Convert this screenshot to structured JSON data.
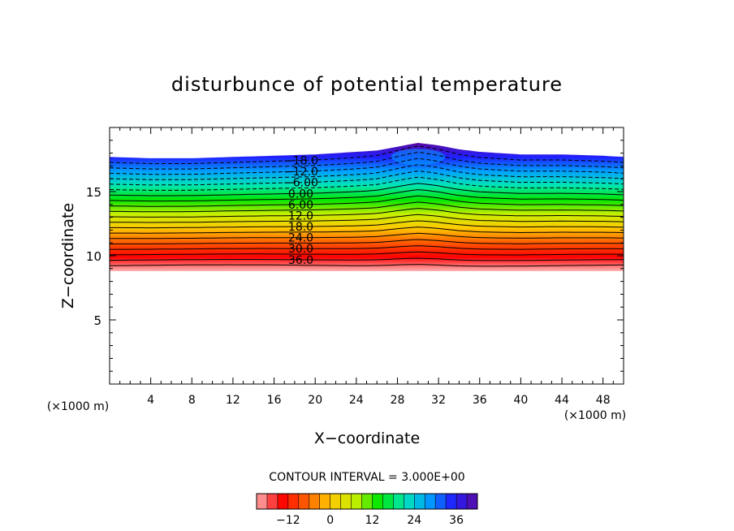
{
  "chart_data": {
    "type": "heatmap",
    "title": "disturbunce of potential temperature",
    "xlabel": "X−coordinate",
    "ylabel": "Z−coordinate",
    "x_unit_label": "(×1000 m)",
    "y_unit_label": "(×1000 m)",
    "xlim": [
      0,
      50
    ],
    "ylim": [
      0,
      20
    ],
    "x_ticks": [
      4,
      8,
      12,
      16,
      20,
      24,
      28,
      32,
      36,
      40,
      44,
      48
    ],
    "x_tick_labels": [
      "4",
      "8",
      "12",
      "16",
      "20",
      "24",
      "28",
      "32",
      "36",
      "40",
      "44",
      "48"
    ],
    "y_ticks": [
      5,
      10,
      15
    ],
    "y_tick_labels": [
      "5",
      "10",
      "15"
    ],
    "field": {
      "description": "potential temperature disturbance layer",
      "layer_bottom_z": 8.8,
      "layer_top_z_profile": [
        [
          0,
          17.7
        ],
        [
          4,
          17.6
        ],
        [
          8,
          17.6
        ],
        [
          12,
          17.7
        ],
        [
          16,
          17.8
        ],
        [
          20,
          17.9
        ],
        [
          24,
          18.1
        ],
        [
          26,
          18.2
        ],
        [
          28,
          18.5
        ],
        [
          30,
          18.8
        ],
        [
          32,
          18.6
        ],
        [
          34,
          18.3
        ],
        [
          36,
          18.1
        ],
        [
          40,
          17.9
        ],
        [
          44,
          17.9
        ],
        [
          48,
          17.8
        ],
        [
          50,
          17.7
        ]
      ],
      "bump_center_x": 30,
      "bump_width_x": 3.5,
      "bump_height_upper": 0.8,
      "bump_height_lower": 0.35,
      "value_at_bottom": 42,
      "value_at_top": -21
    },
    "contour_interval": 3.0,
    "contour_interval_label": "CONTOUR INTERVAL =  3.000E+00",
    "contour_labels": [
      {
        "text": "−18.0",
        "value": -18
      },
      {
        "text": "−12.0",
        "value": -12
      },
      {
        "text": "−6.00",
        "value": -6
      },
      {
        "text": "0.00",
        "value": 0
      },
      {
        "text": "6.00",
        "value": 6
      },
      {
        "text": "12.0",
        "value": 12
      },
      {
        "text": "18.0",
        "value": 18
      },
      {
        "text": "24.0",
        "value": 24
      },
      {
        "text": "30.0",
        "value": 30
      },
      {
        "text": "36.0",
        "value": 36
      }
    ],
    "colorbar": {
      "min": -21,
      "max": 42,
      "ticks": [
        -12,
        0,
        12,
        24,
        36
      ],
      "tick_labels": [
        "−12",
        "0",
        "12",
        "24",
        "36"
      ]
    },
    "colors": {
      "palette": [
        "#5a0aa0",
        "#2020ff",
        "#00a0ff",
        "#00e6b4",
        "#00e600",
        "#c8f000",
        "#ffc800",
        "#ff5a00",
        "#ff0000",
        "#ffb4b4"
      ]
    }
  }
}
